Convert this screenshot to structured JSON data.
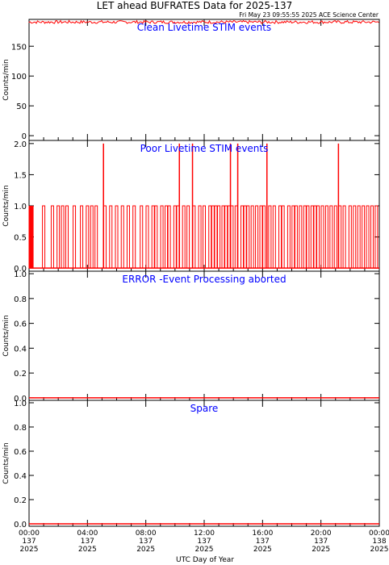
{
  "header": {
    "title": "LET ahead BUFRATES Data for 2025-137",
    "timestamp": "Fri May 23 09:55:55 2025 ACE Science Center"
  },
  "colors": {
    "data": "#ff0000",
    "panel_label": "#0000ff",
    "axes": "#000000"
  },
  "x_axis": {
    "label": "UTC Day of Year",
    "range_hours": [
      0,
      24
    ],
    "ticks": [
      {
        "hour": 0,
        "time": "00:00",
        "day": "137",
        "year": "2025"
      },
      {
        "hour": 4,
        "time": "04:00",
        "day": "137",
        "year": "2025"
      },
      {
        "hour": 8,
        "time": "08:00",
        "day": "137",
        "year": "2025"
      },
      {
        "hour": 12,
        "time": "12:00",
        "day": "137",
        "year": "2025"
      },
      {
        "hour": 16,
        "time": "16:00",
        "day": "137",
        "year": "2025"
      },
      {
        "hour": 20,
        "time": "20:00",
        "day": "137",
        "year": "2025"
      },
      {
        "hour": 24,
        "time": "00:00",
        "day": "138",
        "year": "2025"
      }
    ]
  },
  "chart_data": [
    {
      "type": "line",
      "panel_label": "Clean Livetime STIM events",
      "ylabel": "Counts/min",
      "ylim": [
        -8,
        195
      ],
      "yticks": [
        0,
        50,
        100,
        150
      ],
      "baseline": 191,
      "noise": [
        188,
        193
      ],
      "spikes": []
    },
    {
      "type": "line",
      "panel_label": "Poor Livetime STIM events",
      "ylabel": "Counts/min",
      "ylim": [
        -0.05,
        2.05
      ],
      "yticks": [
        0.0,
        0.5,
        1.0,
        1.5,
        2.0
      ],
      "baseline": 0,
      "dense_start": [
        0.0,
        0.3
      ],
      "ones_hours": [
        1.0,
        1.6,
        2.0,
        2.3,
        2.6,
        3.1,
        3.6,
        4.0,
        4.3,
        4.6,
        5.2,
        5.6,
        6.0,
        6.4,
        6.8,
        7.2,
        7.7,
        8.1,
        8.5,
        8.7,
        9.1,
        9.4,
        9.6,
        10.0,
        10.2,
        10.6,
        10.9,
        11.3,
        11.7,
        12.0,
        12.4,
        12.6,
        12.8,
        13.0,
        13.3,
        13.5,
        13.7,
        13.9,
        14.2,
        14.6,
        14.8,
        15.0,
        15.3,
        15.6,
        15.9,
        16.1,
        16.5,
        16.8,
        17.2,
        17.4,
        17.8,
        18.1,
        18.3,
        18.6,
        18.9,
        19.1,
        19.4,
        19.6,
        19.8,
        20.1,
        20.4,
        20.7,
        21.0,
        21.3,
        21.6,
        22.0,
        22.3,
        22.6,
        22.9,
        23.2,
        23.5,
        23.8
      ],
      "twos_hours": [
        5.1,
        10.3,
        11.2,
        13.8,
        14.3,
        16.3,
        21.2
      ]
    },
    {
      "type": "line",
      "panel_label": "ERROR -Event Processing aborted",
      "ylabel": "Counts/min",
      "ylim": [
        -0.02,
        1.02
      ],
      "yticks": [
        0.0,
        0.2,
        0.4,
        0.6,
        0.8,
        1.0
      ],
      "baseline": 0
    },
    {
      "type": "line",
      "panel_label": "Spare",
      "ylabel": "Counts/min",
      "ylim": [
        -0.02,
        1.02
      ],
      "yticks": [
        0.0,
        0.2,
        0.4,
        0.6,
        0.8,
        1.0
      ],
      "baseline": 0
    }
  ]
}
